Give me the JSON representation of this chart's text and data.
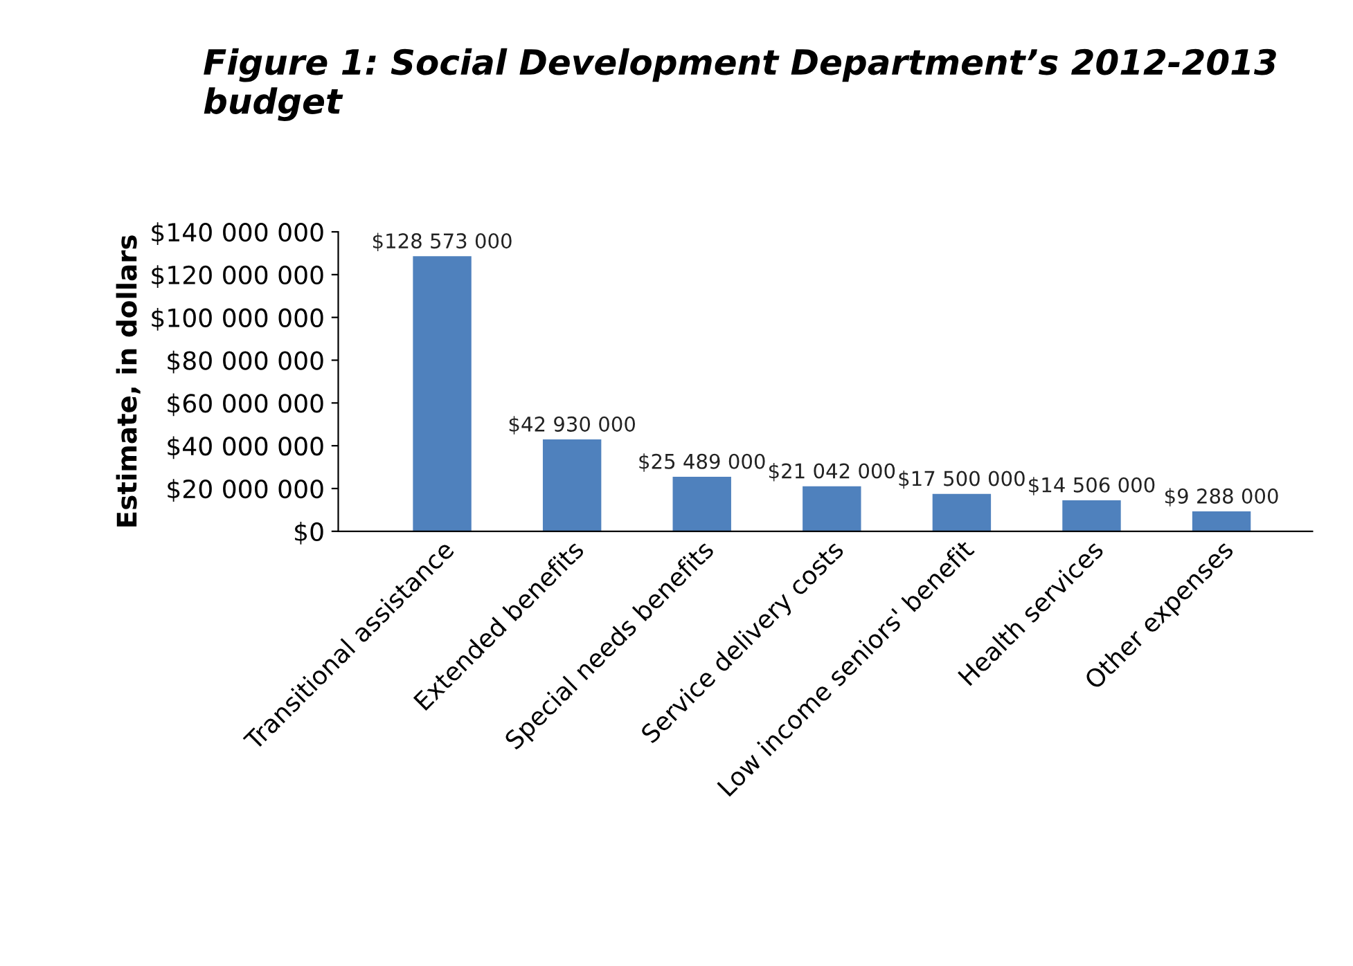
{
  "chart_data": {
    "type": "bar",
    "title": "Figure 1: Social Development Department’s 2012-2013 budget",
    "ylabel": "Estimate, in dollars",
    "categories": [
      "Transitional assistance",
      "Extended benefits",
      "Special needs benefits",
      "Service delivery costs",
      "Low income seniors' benefit",
      "Health services",
      "Other expenses"
    ],
    "values": [
      128573000,
      42930000,
      25489000,
      21042000,
      17500000,
      14506000,
      9288000
    ],
    "value_labels": [
      "$128 573 000",
      "$42 930 000",
      "$25 489 000",
      "$21 042 000",
      "$17 500 000",
      "$14 506 000",
      "$9 288 000"
    ],
    "color": "#4f81bd",
    "ylim": [
      0,
      140000000
    ],
    "yticks": [
      {
        "value": 0,
        "label": "$0"
      },
      {
        "value": 20000000,
        "label": "$20 000 000"
      },
      {
        "value": 40000000,
        "label": "$40 000 000"
      },
      {
        "value": 60000000,
        "label": "$60 000 000"
      },
      {
        "value": 80000000,
        "label": "$80 000 000"
      },
      {
        "value": 100000000,
        "label": "$100 000 000"
      },
      {
        "value": 120000000,
        "label": "$120 000 000"
      },
      {
        "value": 140000000,
        "label": "$140 000 000"
      }
    ],
    "grid": false
  }
}
